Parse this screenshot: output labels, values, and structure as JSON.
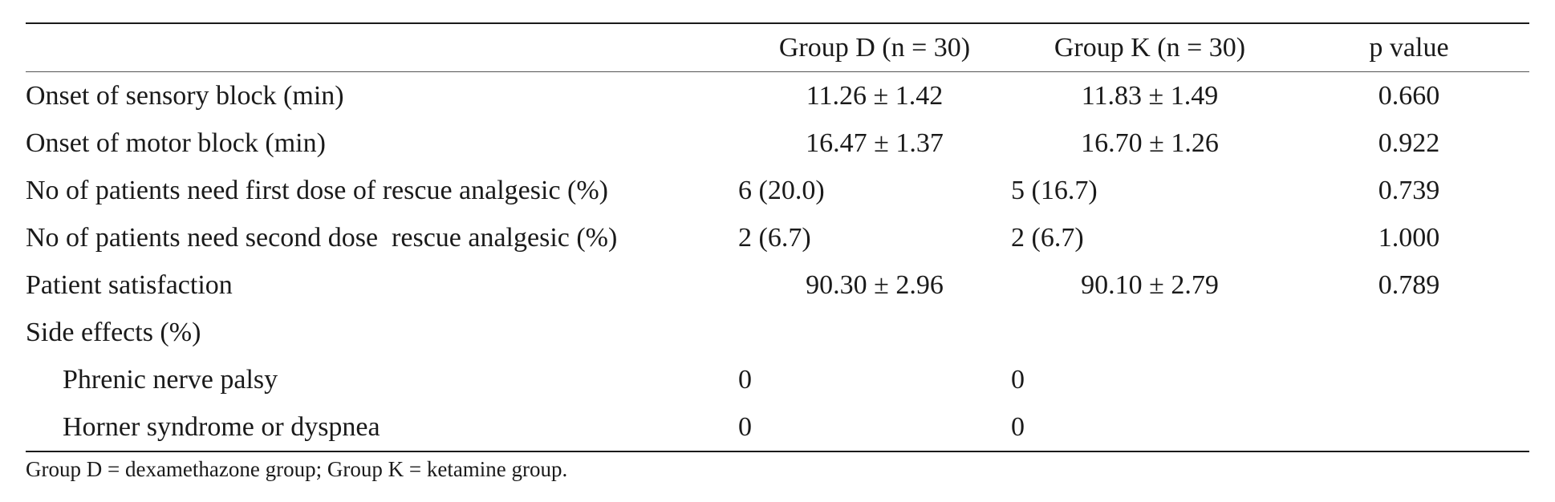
{
  "table": {
    "headers": [
      "",
      "Group D (n = 30)",
      "Group K (n = 30)",
      "p value"
    ],
    "rows": [
      {
        "label": "Onset of sensory block (min)",
        "d": "11.26 ± 1.42",
        "k": "11.83 ± 1.49",
        "p": "0.660"
      },
      {
        "label": "Onset of motor block (min)",
        "d": "16.47 ± 1.37",
        "k": "16.70 ± 1.26",
        "p": "0.922"
      },
      {
        "label": "No of patients need first dose of rescue analgesic (%)",
        "d": "6 (20.0)",
        "k": "5 (16.7)",
        "p": "0.739"
      },
      {
        "label": "No of patients need second dose  rescue analgesic (%)",
        "d": "2 (6.7)",
        "k": "2 (6.7)",
        "p": "1.000"
      },
      {
        "label": "Patient satisfaction",
        "d": "90.30 ± 2.96",
        "k": "90.10 ± 2.79",
        "p": "0.789"
      },
      {
        "label": "Side effects (%)",
        "d": "",
        "k": "",
        "p": ""
      },
      {
        "label": "Phrenic nerve palsy",
        "d": "0",
        "k": "0",
        "p": ""
      },
      {
        "label": "Horner syndrome or dyspnea",
        "d": "0",
        "k": "0",
        "p": ""
      }
    ]
  },
  "footnote": "Group D = dexamethazone group; Group K = ketamine group."
}
